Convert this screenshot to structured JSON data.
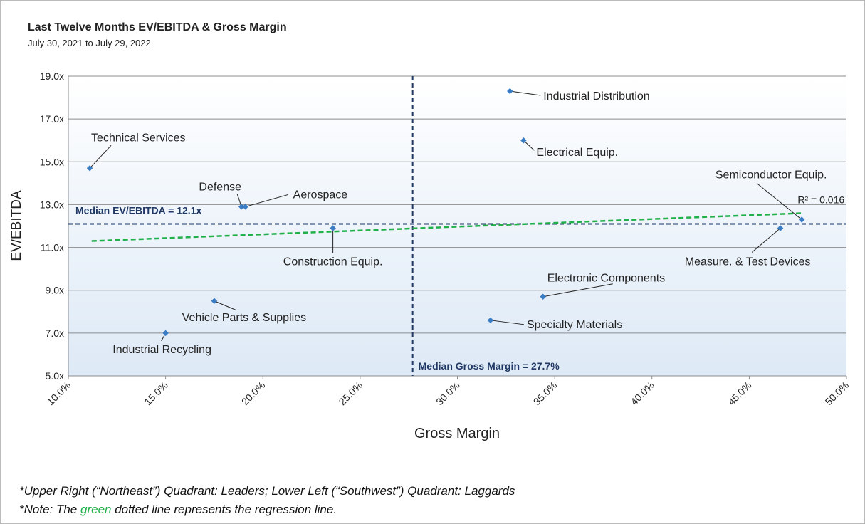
{
  "chart_data": {
    "type": "scatter",
    "title": "Last Twelve Months EV/EBITDA & Gross Margin",
    "subtitle": "July 30, 2021 to July 29, 2022",
    "xlabel": "Gross Margin",
    "ylabel": "EV/EBITDA",
    "labels": [
      "Technical Services",
      "Defense",
      "Aerospace",
      "Construction Equip.",
      "Industrial Distribution",
      "Electrical Equip.",
      "Semiconductor Equip.",
      "Measure. & Test Devices",
      "Electronic Components",
      "Specialty Materials",
      "Vehicle Parts & Supplies",
      "Industrial Recycling"
    ],
    "x": [
      11.1,
      18.9,
      19.1,
      23.6,
      32.7,
      33.4,
      47.7,
      46.6,
      34.4,
      31.7,
      17.5,
      15.0
    ],
    "values": [
      14.7,
      12.9,
      12.9,
      11.9,
      18.3,
      16.0,
      12.3,
      11.9,
      8.7,
      7.6,
      8.5,
      7.0
    ],
    "color": "#3b7dc4",
    "xlim": [
      10,
      50
    ],
    "xticks": [
      {
        "value": 10,
        "label": "10.0%"
      },
      {
        "value": 15,
        "label": "15.0%"
      },
      {
        "value": 20,
        "label": "20.0%"
      },
      {
        "value": 25,
        "label": "25.0%"
      },
      {
        "value": 30,
        "label": "30.0%"
      },
      {
        "value": 35,
        "label": "35.0%"
      },
      {
        "value": 40,
        "label": "40.0%"
      },
      {
        "value": 45,
        "label": "45.0%"
      },
      {
        "value": 50,
        "label": "50.0%"
      }
    ],
    "ylim": [
      5,
      19
    ],
    "yticks": [
      {
        "value": 5,
        "label": "5.0x"
      },
      {
        "value": 7,
        "label": "7.0x"
      },
      {
        "value": 9,
        "label": "9.0x"
      },
      {
        "value": 11,
        "label": "11.0x"
      },
      {
        "value": 13,
        "label": "13.0x"
      },
      {
        "value": 15,
        "label": "15.0x"
      },
      {
        "value": 17,
        "label": "17.0x"
      },
      {
        "value": 19,
        "label": "19.0x"
      }
    ],
    "grid": true,
    "reference_lines": [
      {
        "axis": "x",
        "value": 27.7,
        "label": "Median Gross Margin = 27.7%",
        "color": "#1f3864"
      },
      {
        "axis": "y",
        "value": 12.1,
        "label": "Median EV/EBITDA = 12.1x",
        "color": "#1f3864"
      }
    ],
    "trendline": {
      "x": [
        11.2,
        47.7
      ],
      "values": [
        11.3,
        12.6
      ],
      "color": "#22b04b",
      "label": "R² = 0.016"
    }
  },
  "notes": {
    "line1": "*Upper Right (“Northeast”) Quadrant: Leaders; Lower Left (“Southwest”) Quadrant: Laggards",
    "line2": [
      "*Note: The ",
      "green",
      " dotted line represents the regression line."
    ]
  }
}
